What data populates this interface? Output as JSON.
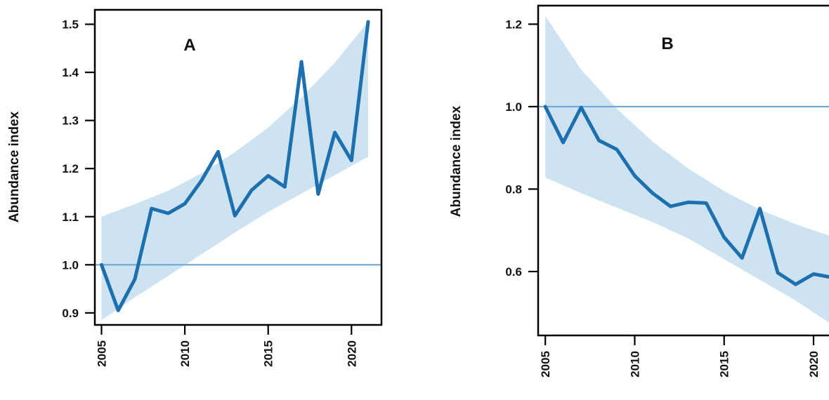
{
  "colors": {
    "line": "#1d6fae",
    "band": "#cde3f1",
    "reference": "#6fa8d6",
    "axis": "#000000"
  },
  "chart_data": [
    {
      "type": "line",
      "panel_label": "A",
      "xlabel": "",
      "ylabel": "Abundance index",
      "xlim": [
        2004.6,
        2021.8
      ],
      "ylim": [
        0.875,
        1.53
      ],
      "xticks": [
        2005,
        2010,
        2015,
        2020
      ],
      "xtick_labels": [
        "2005",
        "2010",
        "2015",
        "2020"
      ],
      "yticks": [
        0.9,
        1.0,
        1.1,
        1.2,
        1.3,
        1.4,
        1.5
      ],
      "ytick_labels": [
        "0.9",
        "1.0",
        "1.1",
        "1.2",
        "1.3",
        "1.4",
        "1.5"
      ],
      "reference_line": 1.0,
      "x": [
        2005,
        2006,
        2007,
        2008,
        2009,
        2010,
        2011,
        2012,
        2013,
        2014,
        2015,
        2016,
        2017,
        2018,
        2019,
        2020,
        2021
      ],
      "series": [
        {
          "values": [
            1.0,
            0.905,
            0.97,
            1.117,
            1.107,
            1.127,
            1.175,
            1.235,
            1.102,
            1.155,
            1.185,
            1.162,
            1.422,
            1.147,
            1.275,
            1.217,
            1.505
          ]
        }
      ],
      "band": {
        "x": [
          2005,
          2007,
          2009,
          2011,
          2013,
          2015,
          2017,
          2019,
          2021
        ],
        "upper": [
          1.1,
          1.126,
          1.154,
          1.19,
          1.234,
          1.285,
          1.348,
          1.42,
          1.505
        ],
        "lower": [
          0.885,
          0.932,
          0.977,
          1.022,
          1.067,
          1.11,
          1.148,
          1.186,
          1.225
        ]
      },
      "grid": false
    },
    {
      "type": "line",
      "panel_label": "B",
      "xlabel": "",
      "ylabel": "Abundance index",
      "xlim": [
        2004.6,
        2021.1
      ],
      "ylim": [
        0.445,
        1.245
      ],
      "xticks": [
        2005,
        2010,
        2015,
        2020
      ],
      "xtick_labels": [
        "2005",
        "2010",
        "2015",
        "2020"
      ],
      "yticks": [
        0.6,
        0.8,
        1.0,
        1.2
      ],
      "ytick_labels": [
        "0.6",
        "0.8",
        "1.0",
        "1.2"
      ],
      "reference_line": 1.0,
      "x": [
        2005,
        2006,
        2007,
        2008,
        2009,
        2010,
        2011,
        2012,
        2013,
        2014,
        2015,
        2016,
        2017,
        2018,
        2019,
        2020,
        2021
      ],
      "series": [
        {
          "values": [
            1.0,
            0.913,
            0.998,
            0.918,
            0.896,
            0.832,
            0.79,
            0.758,
            0.768,
            0.766,
            0.683,
            0.633,
            0.753,
            0.597,
            0.569,
            0.594,
            0.586
          ]
        }
      ],
      "band": {
        "x": [
          2005,
          2007,
          2009,
          2011,
          2013,
          2015,
          2017,
          2019,
          2021
        ],
        "upper": [
          1.22,
          1.09,
          0.995,
          0.915,
          0.85,
          0.795,
          0.75,
          0.715,
          0.685
        ],
        "lower": [
          0.828,
          0.79,
          0.755,
          0.72,
          0.68,
          0.63,
          0.58,
          0.53,
          0.472
        ]
      },
      "grid": false
    }
  ]
}
